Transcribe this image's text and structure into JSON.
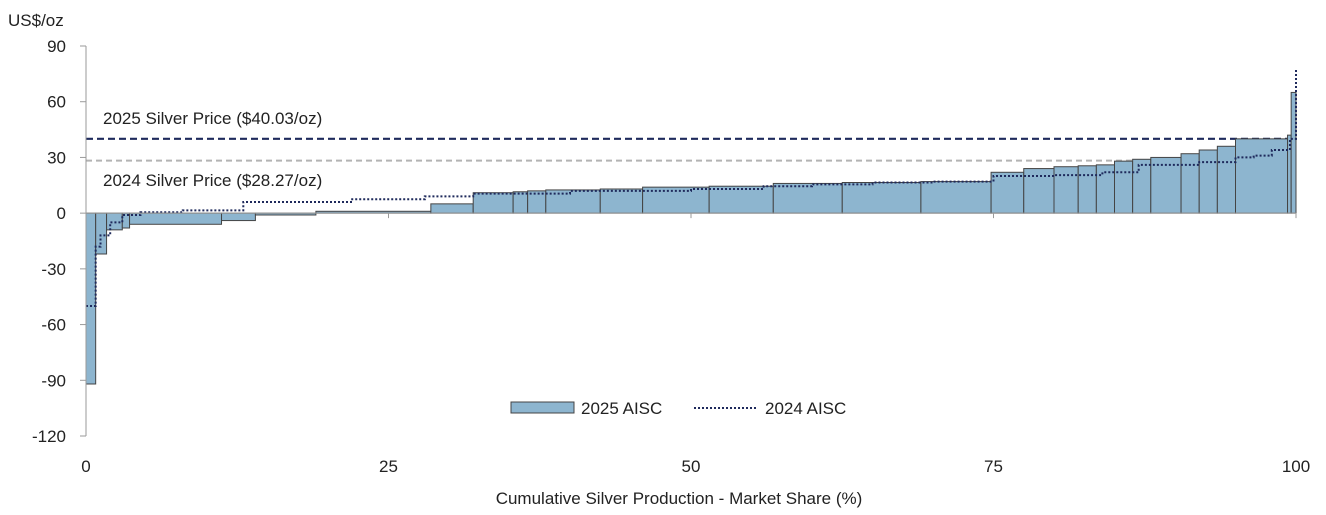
{
  "chart_data": {
    "type": "area",
    "unit_label": "US$/oz",
    "xlabel": "Cumulative Silver Production - Market Share (%)",
    "xlim": [
      0,
      100
    ],
    "ylim": [
      -120,
      90
    ],
    "x_ticks": [
      0,
      25,
      50,
      75,
      100
    ],
    "y_ticks": [
      90,
      60,
      30,
      0,
      -30,
      -60,
      -90,
      -120
    ],
    "reference_lines": [
      {
        "label": "2025 Silver Price ($40.03/oz)",
        "value": 40.03,
        "color": "#1f2a5c",
        "style": "dashed"
      },
      {
        "label": "2024 Silver Price ($28.27/oz)",
        "value": 28.27,
        "color": "#b3b3b3",
        "style": "dashed"
      }
    ],
    "legend": {
      "position": "bottom-center",
      "entries": [
        "2025 AISC",
        "2024 AISC"
      ]
    },
    "series": [
      {
        "name": "2025 AISC",
        "style": "stepped-bars",
        "color": "#8db5cf",
        "edge_color": "#444444",
        "x_start": [
          0,
          0.8,
          1.7,
          3.0,
          3.6,
          11.2,
          14.0,
          19.0,
          28.5,
          32.0,
          35.3,
          36.5,
          38.0,
          42.5,
          46.0,
          51.5,
          56.8,
          62.5,
          69.0,
          74.8,
          77.5,
          80.0,
          82.0,
          83.5,
          85.0,
          86.5,
          88.0,
          90.5,
          92.0,
          93.5,
          95.0,
          99.3,
          99.6
        ],
        "x_end": [
          0.8,
          1.7,
          3.0,
          3.6,
          11.2,
          14.0,
          19.0,
          28.5,
          32.0,
          35.3,
          36.5,
          38.0,
          42.5,
          46.0,
          51.5,
          56.8,
          62.5,
          69.0,
          74.8,
          77.5,
          80.0,
          82.0,
          83.5,
          85.0,
          86.5,
          88.0,
          90.5,
          92.0,
          93.5,
          95.0,
          99.3,
          99.6,
          100
        ],
        "values": [
          -92,
          -22,
          -9,
          -8,
          -6,
          -4,
          -1,
          1,
          5,
          11,
          11.5,
          12,
          12.5,
          13,
          14,
          14.5,
          16,
          16.5,
          17,
          22,
          24,
          25,
          25.5,
          26,
          28,
          29,
          30,
          32,
          34,
          36,
          40,
          42,
          65
        ]
      },
      {
        "name": "2024 AISC",
        "style": "dotted-step-line",
        "color": "#1f2a5c",
        "x": [
          0,
          0.8,
          1.2,
          2.0,
          3.0,
          4.5,
          8.0,
          13.0,
          22.0,
          28.0,
          32.0,
          40.0,
          50.0,
          56.0,
          60.0,
          65.0,
          70.0,
          75.0,
          80.0,
          84.0,
          87.0,
          92.0,
          95.0,
          96.5,
          98.0,
          99.5,
          100
        ],
        "values": [
          -50,
          -18,
          -12,
          -5,
          -1,
          0.5,
          1.5,
          6,
          7.5,
          9,
          10.5,
          12,
          13,
          14.5,
          15.5,
          16.5,
          17,
          20,
          20.5,
          22,
          26,
          27.5,
          30,
          31,
          34,
          40,
          78
        ]
      }
    ]
  }
}
